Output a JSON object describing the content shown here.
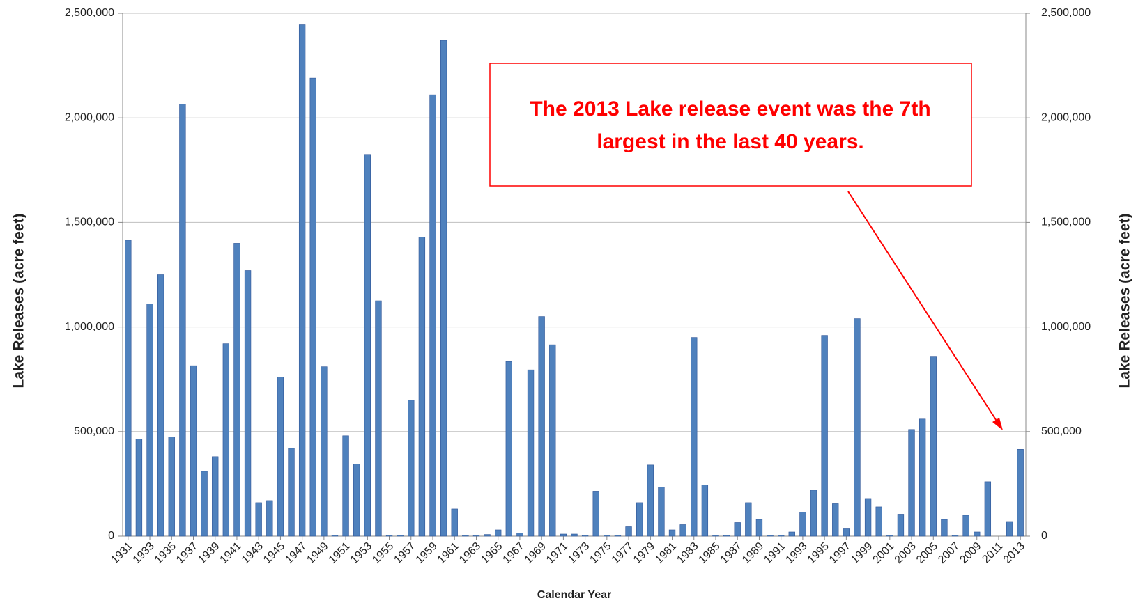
{
  "chart_data": {
    "type": "bar",
    "x_label": "Calendar Year",
    "y_label": "Lake Releases (acre feet)",
    "y2_label": "Lake Releases (acre feet)",
    "annotation": [
      "The 2013 Lake release event was the 7th",
      "largest in the last 40 years."
    ],
    "annotation_color": "#ff0000",
    "color": "#4f81bd",
    "grid": true,
    "categories": [
      "1931",
      null,
      "1933",
      null,
      "1935",
      null,
      "1937",
      null,
      "1939",
      null,
      "1941",
      null,
      "1943",
      null,
      "1945",
      null,
      "1947",
      null,
      "1949",
      null,
      "1951",
      null,
      "1953",
      null,
      "1955",
      null,
      "1957",
      null,
      "1959",
      null,
      "1961",
      null,
      "1963",
      null,
      "1965",
      null,
      "1967",
      null,
      "1969",
      null,
      "1971",
      null,
      "1973",
      null,
      "1975",
      null,
      "1977",
      null,
      "1979",
      null,
      "1981",
      null,
      "1983",
      null,
      "1985",
      null,
      "1987",
      null,
      "1989",
      null,
      "1991",
      null,
      "1993",
      null,
      "1995",
      null,
      "1997",
      null,
      "1999",
      null,
      "2001",
      null,
      "2003",
      null,
      "2005",
      null,
      "2007",
      null,
      "2009",
      null,
      "2011",
      null,
      "2013"
    ],
    "values": [
      1415000,
      465000,
      1110000,
      1250000,
      475000,
      2065000,
      815000,
      310000,
      380000,
      920000,
      1400000,
      1270000,
      160000,
      170000,
      760000,
      420000,
      2445000,
      2190000,
      810000,
      5000,
      480000,
      345000,
      1825000,
      1125000,
      5000,
      5000,
      650000,
      1430000,
      2110000,
      2370000,
      130000,
      5000,
      5000,
      8000,
      30000,
      835000,
      15000,
      795000,
      1050000,
      915000,
      10000,
      10000,
      5000,
      215000,
      5000,
      5000,
      45000,
      160000,
      340000,
      235000,
      30000,
      55000,
      950000,
      245000,
      5000,
      5000,
      65000,
      160000,
      80000,
      5000,
      5000,
      20000,
      115000,
      220000,
      960000,
      155000,
      35000,
      1040000,
      180000,
      140000,
      5000,
      105000,
      510000,
      560000,
      860000,
      80000,
      5000,
      100000,
      20000,
      260000,
      0,
      70000,
      415000
    ],
    "ylim": [
      0,
      2500000
    ],
    "yticks": [
      0,
      {
        "value": 500000,
        "label": "500,000"
      },
      {
        "value": 1000000,
        "label": "1,000,000"
      },
      {
        "value": 1500000,
        "label": "1,500,000"
      },
      {
        "value": 2000000,
        "label": "2,000,000"
      },
      {
        "value": 2500000,
        "label": "2,500,000"
      }
    ],
    "y2lim": [
      0,
      2500000
    ],
    "y2ticks": [
      0,
      {
        "value": 500000,
        "label": "500,000"
      },
      {
        "value": 1000000,
        "label": "1,000,000"
      },
      {
        "value": 1500000,
        "label": "1,500,000"
      },
      {
        "value": 2000000,
        "label": "2,000,000"
      },
      {
        "value": 2500000,
        "label": "2,500,000"
      }
    ]
  }
}
